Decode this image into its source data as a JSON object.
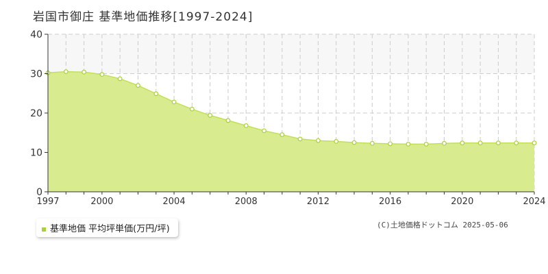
{
  "title": "岩国市御庄 基準地価推移[1997-2024]",
  "legend": {
    "label": "基準地価 平均坪単価(万円/坪)"
  },
  "copyright": "(C)土地価格ドットコム 2025-05-06",
  "colors": {
    "fill": "#d9eb8f",
    "line": "#c2df5c",
    "band": "#f7f7f7",
    "grid": "#cccccc",
    "marker": "#a9d03a"
  },
  "chart_data": {
    "type": "area",
    "x": [
      1997,
      1998,
      1999,
      2000,
      2001,
      2002,
      2003,
      2004,
      2005,
      2006,
      2007,
      2008,
      2009,
      2010,
      2011,
      2012,
      2013,
      2014,
      2015,
      2016,
      2017,
      2018,
      2019,
      2020,
      2021,
      2022,
      2023,
      2024
    ],
    "series": [
      {
        "name": "基準地価 平均坪単価(万円/坪)",
        "values": [
          30.2,
          30.5,
          30.4,
          29.8,
          28.7,
          27.0,
          24.9,
          22.8,
          21.0,
          19.4,
          18.1,
          16.8,
          15.5,
          14.5,
          13.4,
          13.0,
          12.8,
          12.5,
          12.3,
          12.2,
          12.1,
          12.1,
          12.3,
          12.4,
          12.4,
          12.4,
          12.4,
          12.4
        ]
      }
    ],
    "xticks": [
      "1997",
      "2000",
      "2004",
      "2008",
      "2012",
      "2016",
      "2020",
      "2024"
    ],
    "yticks": [
      "0",
      "10",
      "20",
      "30",
      "40"
    ],
    "xlim": [
      1997,
      2024
    ],
    "ylim": [
      0,
      40
    ],
    "grid": true
  }
}
